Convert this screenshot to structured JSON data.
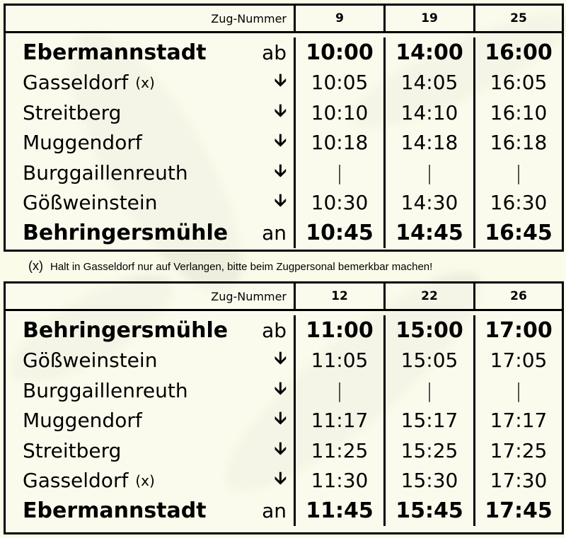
{
  "tables": [
    {
      "header_label": "Zug-Nummer",
      "trains": [
        "9",
        "19",
        "25"
      ],
      "rows": [
        {
          "station": "Ebermannstadt",
          "note": "",
          "dir": "ab",
          "bold": true,
          "times": [
            "10:00",
            "14:00",
            "16:00"
          ]
        },
        {
          "station": "Gasseldorf",
          "note": "(x)",
          "dir": "🡫",
          "bold": false,
          "times": [
            "10:05",
            "14:05",
            "16:05"
          ]
        },
        {
          "station": "Streitberg",
          "note": "",
          "dir": "🡫",
          "bold": false,
          "times": [
            "10:10",
            "14:10",
            "16:10"
          ]
        },
        {
          "station": "Muggendorf",
          "note": "",
          "dir": "🡫",
          "bold": false,
          "times": [
            "10:18",
            "14:18",
            "16:18"
          ]
        },
        {
          "station": "Burggaillenreuth",
          "note": "",
          "dir": "🡫",
          "bold": false,
          "times": [
            "|",
            "|",
            "|"
          ]
        },
        {
          "station": "Gößweinstein",
          "note": "",
          "dir": "🡫",
          "bold": false,
          "times": [
            "10:30",
            "14:30",
            "16:30"
          ]
        },
        {
          "station": "Behringersmühle",
          "note": "",
          "dir": "an",
          "bold": true,
          "times": [
            "10:45",
            "14:45",
            "16:45"
          ]
        }
      ]
    },
    {
      "header_label": "Zug-Nummer",
      "trains": [
        "12",
        "22",
        "26"
      ],
      "rows": [
        {
          "station": "Behringersmühle",
          "note": "",
          "dir": "ab",
          "bold": true,
          "times": [
            "11:00",
            "15:00",
            "17:00"
          ]
        },
        {
          "station": "Gößweinstein",
          "note": "",
          "dir": "🡫",
          "bold": false,
          "times": [
            "11:05",
            "15:05",
            "17:05"
          ]
        },
        {
          "station": "Burggaillenreuth",
          "note": "",
          "dir": "🡫",
          "bold": false,
          "times": [
            "|",
            "|",
            "|"
          ]
        },
        {
          "station": "Muggendorf",
          "note": "",
          "dir": "🡫",
          "bold": false,
          "times": [
            "11:17",
            "15:17",
            "17:17"
          ]
        },
        {
          "station": "Streitberg",
          "note": "",
          "dir": "🡫",
          "bold": false,
          "times": [
            "11:25",
            "15:25",
            "17:25"
          ]
        },
        {
          "station": "Gasseldorf",
          "note": "(x)",
          "dir": "🡫",
          "bold": false,
          "times": [
            "11:30",
            "15:30",
            "17:30"
          ]
        },
        {
          "station": "Ebermannstadt",
          "note": "",
          "dir": "an",
          "bold": true,
          "times": [
            "11:45",
            "15:45",
            "17:45"
          ]
        }
      ]
    }
  ],
  "footnote": {
    "marker": "(x)",
    "text": "Halt in Gasseldorf nur auf Verlangen, bitte beim Zugpersonal bemerkbar machen!"
  }
}
